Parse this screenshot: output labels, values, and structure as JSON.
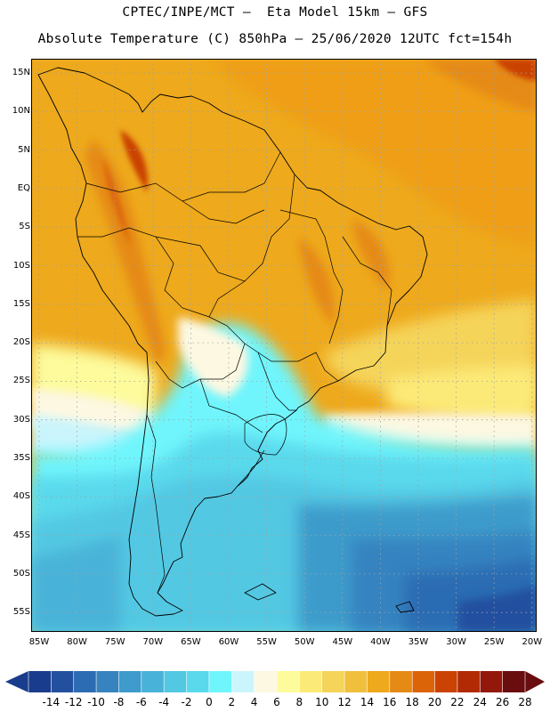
{
  "header": {
    "line1": "CPTEC/INPE/MCT –  Eta Model 15km – GFS",
    "line2": "Absolute Temperature (C) 850hPa – 25/06/2020 12UTC fct=154h"
  },
  "map": {
    "lat_labels": [
      "15N",
      "10N",
      "5N",
      "EQ",
      "5S",
      "10S",
      "15S",
      "20S",
      "25S",
      "30S",
      "35S",
      "40S",
      "45S",
      "50S",
      "55S"
    ],
    "lon_labels": [
      "85W",
      "80W",
      "75W",
      "70W",
      "65W",
      "60W",
      "55W",
      "50W",
      "45W",
      "40W",
      "35W",
      "30W",
      "25W",
      "20W"
    ]
  },
  "colorbar": {
    "labels": [
      "-14",
      "-12",
      "-10",
      "-8",
      "-6",
      "-4",
      "-2",
      "0",
      "2",
      "4",
      "6",
      "8",
      "10",
      "12",
      "14",
      "16",
      "18",
      "20",
      "22",
      "24",
      "26",
      "28"
    ],
    "colors": {
      "cold": [
        "#1a3c8c",
        "#22509f",
        "#2b6cb3",
        "#3683c0",
        "#3e9bcb",
        "#48b2d8",
        "#52c8e3",
        "#5ad9ec",
        "#6ff5fc",
        "#cbf5fc",
        "#fdf8e2",
        "#fdfb9c",
        "#fcea78",
        "#f5d45a",
        "#f0bf3c",
        "#eea91c"
      ],
      "warm": [
        "#e58a14",
        "#dc6408",
        "#ca4304",
        "#b22a04",
        "#93170a",
        "#6a0d10"
      ]
    }
  }
}
